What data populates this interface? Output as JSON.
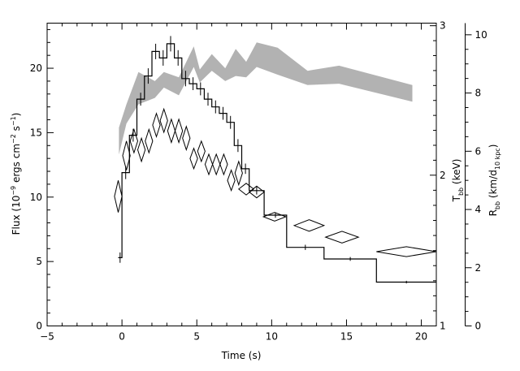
{
  "chart_data": {
    "type": "line",
    "axes": {
      "x": {
        "label": "Time (s)",
        "range": [
          -5,
          21
        ],
        "ticks": [
          -5,
          0,
          5,
          10,
          15,
          20
        ],
        "tick_labels": [
          "−5",
          "0",
          "5",
          "10",
          "15",
          "20"
        ]
      },
      "y_left": {
        "label_parts": [
          "Flux (10",
          "−9",
          " ergs cm",
          "−2",
          " s",
          "−1",
          ")"
        ],
        "range": [
          0,
          23.5
        ],
        "ticks": [
          0,
          5,
          10,
          15,
          20
        ],
        "tick_labels": [
          "0",
          "5",
          "10",
          "15",
          "20"
        ]
      },
      "y_kT": {
        "label_parts": [
          "T",
          "bb",
          " (keV)"
        ],
        "ticks": [
          1,
          2,
          3
        ],
        "tick_labels": [
          "1",
          "2",
          "3"
        ],
        "tick_flux_positions": [
          0.0,
          11.7,
          23.3
        ]
      },
      "y_R": {
        "label_parts": [
          "R",
          "bb",
          " (km/d",
          "10 kpc",
          ")"
        ],
        "range": [
          0,
          10.4
        ],
        "ticks": [
          0,
          2,
          4,
          6,
          8,
          10
        ],
        "tick_labels": [
          "0",
          "2",
          "4",
          "6",
          "8",
          "10"
        ]
      }
    },
    "series": [
      {
        "kind": "flux-histogram",
        "color": "#000000",
        "bins": [
          [
            -0.25,
            0.0,
            5.3
          ],
          [
            0.0,
            0.5,
            11.9
          ],
          [
            0.5,
            1.0,
            14.8
          ],
          [
            1.0,
            1.5,
            17.6
          ],
          [
            1.5,
            2.0,
            19.4
          ],
          [
            2.0,
            2.5,
            21.3
          ],
          [
            2.5,
            3.0,
            20.8
          ],
          [
            3.0,
            3.5,
            21.9
          ],
          [
            3.5,
            4.0,
            20.8
          ],
          [
            4.0,
            4.5,
            19.2
          ],
          [
            4.5,
            5.0,
            18.8
          ],
          [
            5.0,
            5.5,
            18.4
          ],
          [
            5.5,
            6.0,
            17.6
          ],
          [
            6.0,
            6.5,
            17.0
          ],
          [
            6.5,
            7.0,
            16.5
          ],
          [
            7.0,
            7.5,
            15.8
          ],
          [
            7.5,
            8.0,
            14.0
          ],
          [
            8.0,
            8.5,
            12.2
          ],
          [
            8.5,
            9.5,
            10.5
          ],
          [
            9.5,
            11.0,
            8.6
          ],
          [
            11.0,
            13.5,
            6.1
          ],
          [
            13.5,
            17.0,
            5.2
          ],
          [
            17.0,
            21.0,
            3.4
          ]
        ],
        "errors": [
          0.4,
          0.5,
          0.5,
          0.5,
          0.6,
          0.6,
          0.6,
          0.6,
          0.6,
          0.6,
          0.5,
          0.5,
          0.5,
          0.5,
          0.5,
          0.5,
          0.5,
          0.4,
          0.3,
          0.2,
          0.2,
          0.15,
          0.1
        ]
      },
      {
        "kind": "kT-band",
        "color": "#b2b2b2",
        "t": [
          -0.2,
          0.3,
          1.1,
          2.2,
          2.8,
          3.8,
          4.8,
          5.2,
          6.0,
          6.9,
          7.6,
          8.3,
          9.0,
          10.4,
          12.4,
          14.5,
          19.4
        ],
        "upper": [
          15.4,
          17.2,
          19.7,
          19.0,
          19.7,
          19.3,
          21.7,
          19.9,
          21.1,
          20.0,
          21.5,
          20.5,
          22.0,
          21.6,
          19.8,
          20.2,
          18.7
        ],
        "lower": [
          13.3,
          15.7,
          17.2,
          17.7,
          18.5,
          17.9,
          20.1,
          18.9,
          19.8,
          19.0,
          19.4,
          19.3,
          20.1,
          19.5,
          18.7,
          18.8,
          17.4
        ]
      },
      {
        "kind": "R-diamonds",
        "color": "#000000",
        "points": [
          [
            -0.25,
            4.45,
            0.25,
            0.55
          ],
          [
            0.3,
            5.85,
            0.25,
            0.5
          ],
          [
            0.8,
            6.35,
            0.25,
            0.4
          ],
          [
            1.3,
            6.05,
            0.25,
            0.4
          ],
          [
            1.8,
            6.35,
            0.25,
            0.4
          ],
          [
            2.3,
            6.9,
            0.25,
            0.4
          ],
          [
            2.8,
            7.05,
            0.25,
            0.4
          ],
          [
            3.3,
            6.7,
            0.25,
            0.4
          ],
          [
            3.8,
            6.7,
            0.25,
            0.4
          ],
          [
            4.3,
            6.45,
            0.25,
            0.4
          ],
          [
            4.8,
            5.75,
            0.25,
            0.35
          ],
          [
            5.3,
            6.0,
            0.25,
            0.35
          ],
          [
            5.8,
            5.55,
            0.25,
            0.35
          ],
          [
            6.3,
            5.55,
            0.25,
            0.35
          ],
          [
            6.8,
            5.55,
            0.25,
            0.35
          ],
          [
            7.3,
            5.0,
            0.25,
            0.35
          ],
          [
            7.8,
            5.25,
            0.25,
            0.4
          ],
          [
            8.3,
            4.7,
            0.5,
            0.2
          ],
          [
            9.0,
            4.6,
            0.5,
            0.2
          ],
          [
            10.2,
            3.75,
            0.75,
            0.15
          ],
          [
            12.5,
            3.45,
            1.0,
            0.2
          ],
          [
            14.7,
            3.05,
            1.1,
            0.2
          ],
          [
            19.0,
            2.55,
            2.0,
            0.17
          ]
        ]
      }
    ]
  }
}
